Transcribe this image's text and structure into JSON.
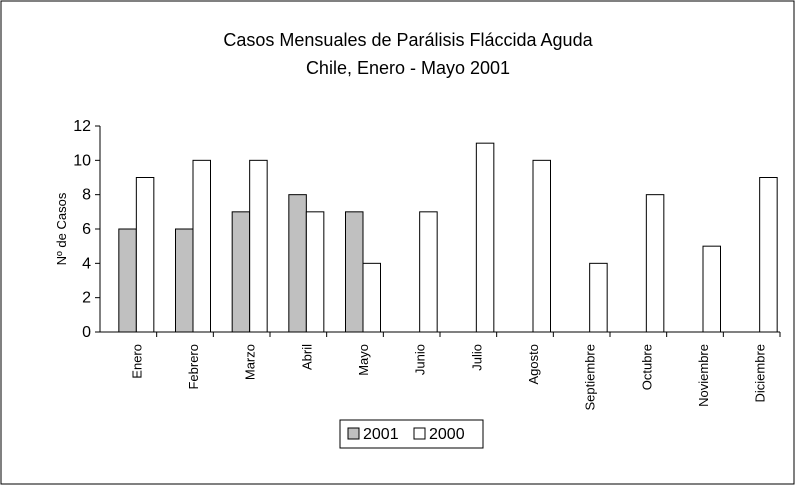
{
  "chart_data": {
    "type": "bar",
    "title": "Casos Mensuales de Parálisis Fláccida Aguda",
    "subtitle": "Chile, Enero - Mayo 2001",
    "y_label": "Nº de Casos",
    "categories": [
      "Enero",
      "Febrero",
      "Marzo",
      "Abril",
      "Mayo",
      "Junio",
      "Julio",
      "Agosto",
      "Septiembre",
      "Octubre",
      "Noviembre",
      "Diciembre"
    ],
    "series": [
      {
        "name": "2001",
        "color": "#c0c0c0",
        "values": [
          6,
          6,
          7,
          8,
          7,
          null,
          null,
          null,
          null,
          null,
          null,
          null
        ]
      },
      {
        "name": "2000",
        "color": "#ffffff",
        "values": [
          9,
          10,
          10,
          7,
          4,
          7,
          11,
          10,
          4,
          8,
          5,
          9
        ]
      }
    ],
    "ylim": [
      0,
      12
    ],
    "yticks": [
      0,
      2,
      4,
      6,
      8,
      10,
      12
    ],
    "grid": false,
    "legend": "bottom"
  }
}
